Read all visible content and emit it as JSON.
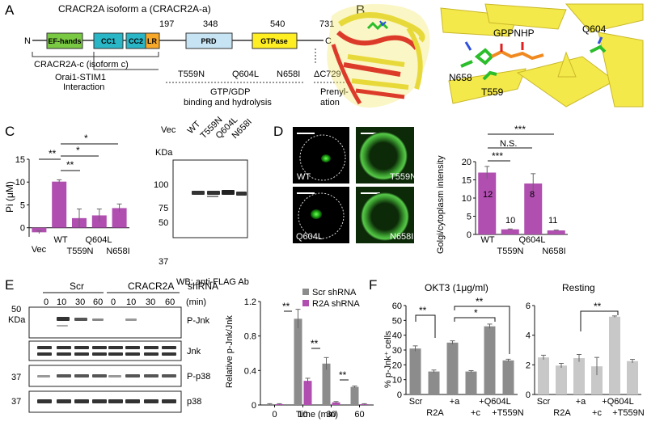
{
  "panels": {
    "A": {
      "letter": "A",
      "title": "CRACR2A isoform a (CRACR2A-a)",
      "n_term": "N",
      "c_term": "C",
      "positions": [
        "197",
        "348",
        "540",
        "731"
      ],
      "domains": [
        "EF-hands",
        "CC1",
        "CC2",
        "LR",
        "PRD",
        "GTPase"
      ],
      "isoform_c": "CRACR2A-c (isoform c)",
      "interaction": [
        "Orai1-STIM1",
        "Interaction"
      ],
      "mutants": [
        "T559N",
        "Q604L",
        "N658I",
        "ΔC729"
      ],
      "gtp_label": [
        "GTP/GDP",
        "binding and hydrolysis"
      ],
      "prenyl_label": [
        "Prenyl-",
        "ation"
      ]
    },
    "B": {
      "letter": "B",
      "labels": [
        "GPPNHP",
        "Q604",
        "N658",
        "T559"
      ]
    },
    "C": {
      "letter": "C",
      "ylabel": "Pi (μM)",
      "significance": [
        "**",
        "**",
        "*",
        "*"
      ],
      "x_top": [
        "Vec",
        "WT",
        "Q604L"
      ],
      "x_bottom": [
        "T559N",
        "N658I"
      ],
      "blot_lanes": [
        "Vec",
        "WT",
        "T559N",
        "Q604L",
        "N658I"
      ],
      "kda": "KDa",
      "blot_markers": [
        "100",
        "75",
        "50",
        "37"
      ],
      "blot_caption": "WB: anti-FLAG Ab"
    },
    "D": {
      "letter": "D",
      "cells": [
        "WT",
        "T559N",
        "Q604L",
        "N658I"
      ],
      "ylabel": "Golgi/cytoplasm intensity",
      "significance": [
        "***",
        "N.S.",
        "***"
      ],
      "bar_counts": [
        "12",
        "10",
        "8",
        "11"
      ],
      "x_top": [
        "WT",
        "Q604L"
      ],
      "x_bottom": [
        "T559N",
        "N658I"
      ]
    },
    "E": {
      "letter": "E",
      "groups": [
        "Scr",
        "CRACR2A"
      ],
      "shrna": "shRNA",
      "times": [
        "0",
        "10",
        "30",
        "60",
        "0",
        "10",
        "30",
        "60"
      ],
      "min": "(min)",
      "kda": "KDa",
      "markers": [
        "50",
        "37",
        "37"
      ],
      "rows": [
        "P-Jnk",
        "Jnk",
        "P-p38",
        "p38"
      ],
      "ylabel": "Relative p-Jnk/Jnk",
      "xlabel": "Time (min)",
      "legend": [
        "Scr shRNA",
        "R2A shRNA"
      ],
      "significance": [
        "**",
        "**",
        "**"
      ]
    },
    "F": {
      "letter": "F",
      "titles": [
        "OKT3 (1μg/ml)",
        "Resting"
      ],
      "ylabel": "% p-Jnk⁺ cells",
      "x_top": [
        "Scr",
        "+a",
        "+Q604L"
      ],
      "x_bottom": [
        "R2A",
        "+c",
        "+T559N"
      ],
      "significance": [
        "**",
        "*",
        "**",
        "**"
      ]
    }
  },
  "colors": {
    "magenta": "#b04fb0",
    "gray": "#8c8c8c",
    "lightgray": "#c8c8c8"
  },
  "chart_data": [
    {
      "type": "bar",
      "panel": "C",
      "categories": [
        "Vec",
        "WT",
        "T559N",
        "Q604L",
        "N658I"
      ],
      "values": [
        -1.0,
        10.1,
        2.1,
        2.7,
        4.3
      ],
      "errors": [
        0.3,
        0.4,
        2.0,
        1.4,
        0.9
      ],
      "ylabel": "Pi (μM)",
      "ylim": [
        -2,
        15
      ],
      "yticks": [
        0,
        5,
        10,
        15
      ]
    },
    {
      "type": "bar",
      "panel": "D",
      "categories": [
        "WT",
        "T559N",
        "Q604L",
        "N658I"
      ],
      "values": [
        17.0,
        1.4,
        14.0,
        1.1
      ],
      "errors": [
        1.7,
        0.1,
        2.7,
        0.1
      ],
      "ylabel": "Golgi/cytoplasm intensity",
      "ylim": [
        0,
        20
      ],
      "yticks": [
        0,
        5,
        10,
        15,
        20
      ]
    },
    {
      "type": "bar",
      "panel": "E",
      "categories": [
        "0",
        "10",
        "30",
        "60"
      ],
      "series": [
        {
          "name": "Scr shRNA",
          "values": [
            0.01,
            1.0,
            0.48,
            0.21
          ],
          "errors": [
            0.005,
            0.11,
            0.07,
            0.01
          ]
        },
        {
          "name": "R2A shRNA",
          "values": [
            0.01,
            0.28,
            0.03,
            0.01
          ],
          "errors": [
            0.005,
            0.03,
            0.01,
            0.005
          ]
        }
      ],
      "xlabel": "Time (min)",
      "ylabel": "Relative p-Jnk/Jnk",
      "ylim": [
        0,
        1.2
      ],
      "yticks": [
        0,
        0.4,
        0.8,
        1.2
      ]
    },
    {
      "type": "bar",
      "panel": "F-OKT3",
      "title": "OKT3 (1μg/ml)",
      "categories": [
        "Scr",
        "R2A",
        "+a",
        "+c",
        "+Q604L",
        "+T559N"
      ],
      "values": [
        31.0,
        15.5,
        35.0,
        15.5,
        46.0,
        23.0
      ],
      "errors": [
        1.8,
        1.0,
        1.2,
        0.6,
        1.5,
        0.8
      ],
      "ylabel": "% p-Jnk⁺ cells",
      "ylim": [
        0,
        60
      ],
      "yticks": [
        0,
        10,
        20,
        30,
        40,
        50,
        60
      ]
    },
    {
      "type": "bar",
      "panel": "F-Resting",
      "title": "Resting",
      "categories": [
        "Scr",
        "R2A",
        "+a",
        "+c",
        "+Q604L",
        "+T559N"
      ],
      "values": [
        2.5,
        1.95,
        2.45,
        1.9,
        5.25,
        2.25
      ],
      "errors": [
        0.15,
        0.15,
        0.25,
        0.6,
        0.05,
        0.12
      ],
      "ylim": [
        0,
        6
      ],
      "yticks": [
        0,
        2,
        4,
        6
      ]
    }
  ]
}
